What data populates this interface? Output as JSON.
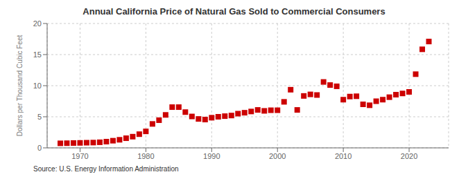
{
  "chart_data": {
    "type": "scatter",
    "title": "Annual California Price of Natural Gas Sold to Commercial Consumers",
    "ylabel": "Dollars per Thousand Cubic Feet",
    "source": "Source: U.S. Energy Information Administration",
    "x": [
      1967,
      1968,
      1969,
      1970,
      1971,
      1972,
      1973,
      1974,
      1975,
      1976,
      1977,
      1978,
      1979,
      1980,
      1981,
      1982,
      1983,
      1984,
      1985,
      1986,
      1987,
      1988,
      1989,
      1990,
      1991,
      1992,
      1993,
      1994,
      1995,
      1996,
      1997,
      1998,
      1999,
      2000,
      2001,
      2002,
      2003,
      2004,
      2005,
      2006,
      2007,
      2008,
      2009,
      2010,
      2011,
      2012,
      2013,
      2014,
      2015,
      2016,
      2017,
      2018,
      2019,
      2020,
      2021,
      2022,
      2023
    ],
    "values": [
      0.73,
      0.75,
      0.78,
      0.8,
      0.83,
      0.85,
      0.9,
      1.0,
      1.15,
      1.3,
      1.55,
      1.8,
      2.2,
      2.65,
      3.85,
      4.45,
      5.3,
      6.55,
      6.55,
      5.75,
      5.05,
      4.65,
      4.55,
      4.85,
      5.0,
      5.1,
      5.2,
      5.5,
      5.65,
      5.85,
      6.1,
      5.95,
      6.05,
      6.05,
      7.4,
      9.35,
      6.1,
      8.35,
      8.6,
      8.5,
      10.6,
      10.1,
      9.9,
      7.75,
      8.25,
      8.3,
      7.0,
      6.85,
      7.5,
      7.75,
      8.15,
      8.55,
      8.75,
      9.0,
      11.85,
      15.85,
      17.1
    ],
    "color": "#cc0000",
    "marker": "square",
    "xlim": [
      1965,
      2026
    ],
    "xticks": [
      1970,
      1980,
      1990,
      2000,
      2010,
      2020
    ],
    "ylim": [
      0,
      20
    ],
    "yticks": [
      0,
      5,
      10,
      15,
      20
    ],
    "grid": true
  }
}
